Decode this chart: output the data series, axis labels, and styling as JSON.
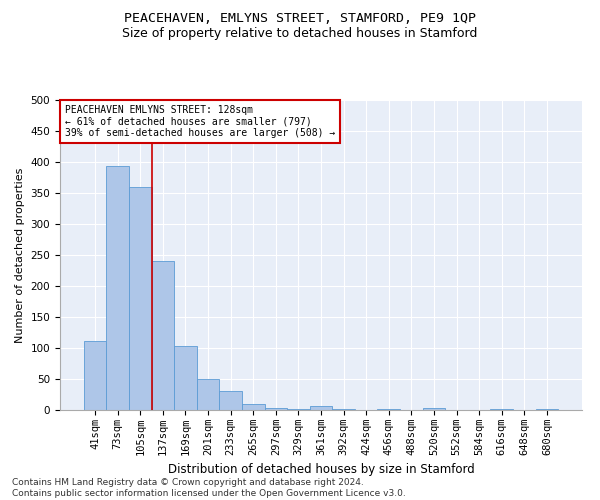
{
  "title": "PEACEHAVEN, EMLYNS STREET, STAMFORD, PE9 1QP",
  "subtitle": "Size of property relative to detached houses in Stamford",
  "xlabel": "Distribution of detached houses by size in Stamford",
  "ylabel": "Number of detached properties",
  "categories": [
    "41sqm",
    "73sqm",
    "105sqm",
    "137sqm",
    "169sqm",
    "201sqm",
    "233sqm",
    "265sqm",
    "297sqm",
    "329sqm",
    "361sqm",
    "392sqm",
    "424sqm",
    "456sqm",
    "488sqm",
    "520sqm",
    "552sqm",
    "584sqm",
    "616sqm",
    "648sqm",
    "680sqm"
  ],
  "values": [
    111,
    394,
    360,
    240,
    103,
    50,
    30,
    9,
    4,
    2,
    7,
    1,
    0,
    2,
    0,
    3,
    0,
    0,
    2,
    0,
    1
  ],
  "bar_color": "#aec6e8",
  "bar_edge_color": "#5b9bd5",
  "vline_x": 2.5,
  "vline_color": "#cc0000",
  "annotation_text": "PEACEHAVEN EMLYNS STREET: 128sqm\n← 61% of detached houses are smaller (797)\n39% of semi-detached houses are larger (508) →",
  "annotation_box_color": "#ffffff",
  "annotation_box_edge": "#cc0000",
  "ylim": [
    0,
    500
  ],
  "yticks": [
    0,
    50,
    100,
    150,
    200,
    250,
    300,
    350,
    400,
    450,
    500
  ],
  "bg_color": "#e8eef8",
  "footer_line1": "Contains HM Land Registry data © Crown copyright and database right 2024.",
  "footer_line2": "Contains public sector information licensed under the Open Government Licence v3.0.",
  "title_fontsize": 9.5,
  "subtitle_fontsize": 9,
  "xlabel_fontsize": 8.5,
  "ylabel_fontsize": 8,
  "tick_fontsize": 7.5,
  "footer_fontsize": 6.5
}
